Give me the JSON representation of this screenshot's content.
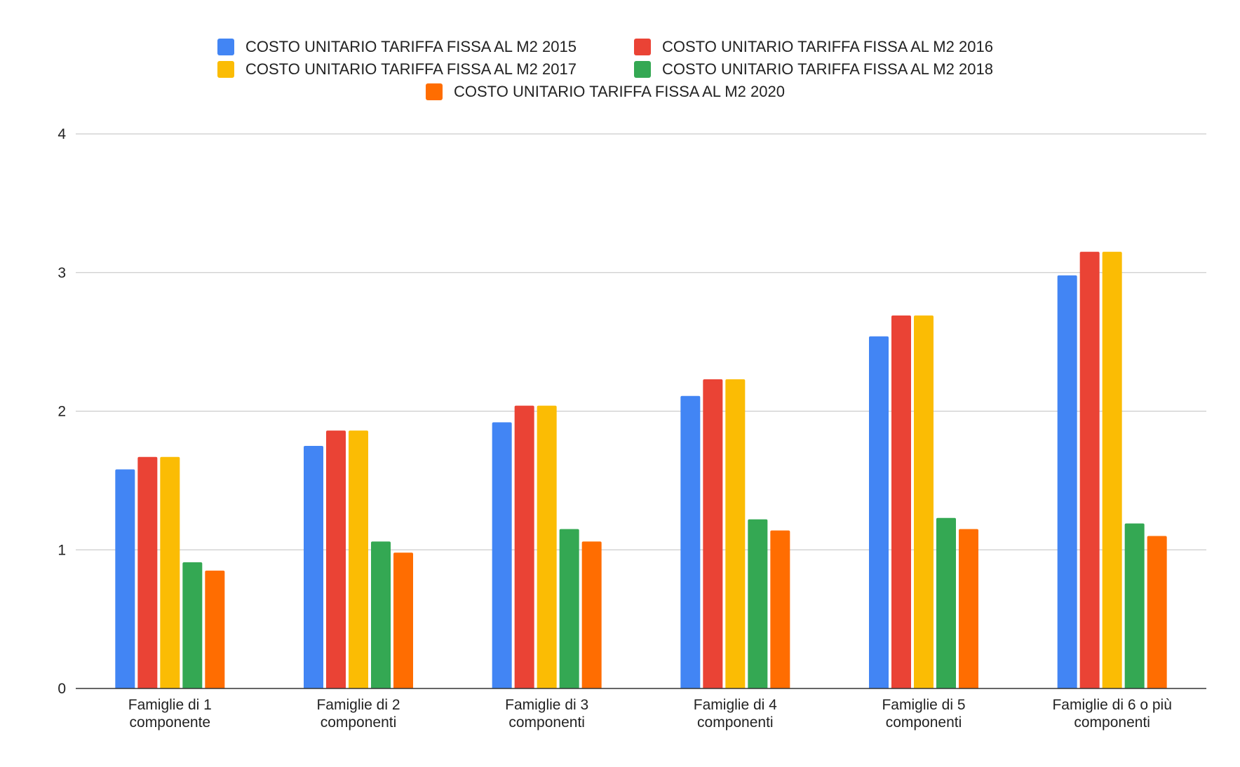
{
  "chart_data": {
    "type": "bar",
    "title": "",
    "xlabel": "",
    "ylabel": "",
    "ylim": [
      0,
      4
    ],
    "yticks": [
      0,
      1,
      2,
      3,
      4
    ],
    "grid": true,
    "legend_position": "top-center",
    "categories": [
      [
        "Famiglie di 1",
        "componente"
      ],
      [
        "Famiglie di 2",
        "componenti"
      ],
      [
        "Famiglie di 3",
        "componenti"
      ],
      [
        "Famiglie di 4",
        "componenti"
      ],
      [
        "Famiglie di 5",
        "componenti"
      ],
      [
        "Famiglie di 6 o più",
        "componenti"
      ]
    ],
    "series": [
      {
        "name": "COSTO UNITARIO TARIFFA FISSA AL M2 2015",
        "color": "#4285F4",
        "values": [
          1.58,
          1.75,
          1.92,
          2.11,
          2.54,
          2.98
        ]
      },
      {
        "name": "COSTO UNITARIO TARIFFA FISSA AL M2 2016",
        "color": "#EA4335",
        "values": [
          1.67,
          1.86,
          2.04,
          2.23,
          2.69,
          3.15
        ]
      },
      {
        "name": "COSTO UNITARIO TARIFFA FISSA AL M2 2017",
        "color": "#FBBC04",
        "values": [
          1.67,
          1.86,
          2.04,
          2.23,
          2.69,
          3.15
        ]
      },
      {
        "name": "COSTO UNITARIO TARIFFA FISSA AL M2 2018",
        "color": "#34A853",
        "values": [
          0.91,
          1.06,
          1.15,
          1.22,
          1.23,
          1.19
        ]
      },
      {
        "name": "COSTO UNITARIO TARIFFA FISSA AL M2 2020",
        "color": "#FF6D01",
        "values": [
          0.85,
          0.98,
          1.06,
          1.14,
          1.15,
          1.1
        ]
      }
    ]
  }
}
